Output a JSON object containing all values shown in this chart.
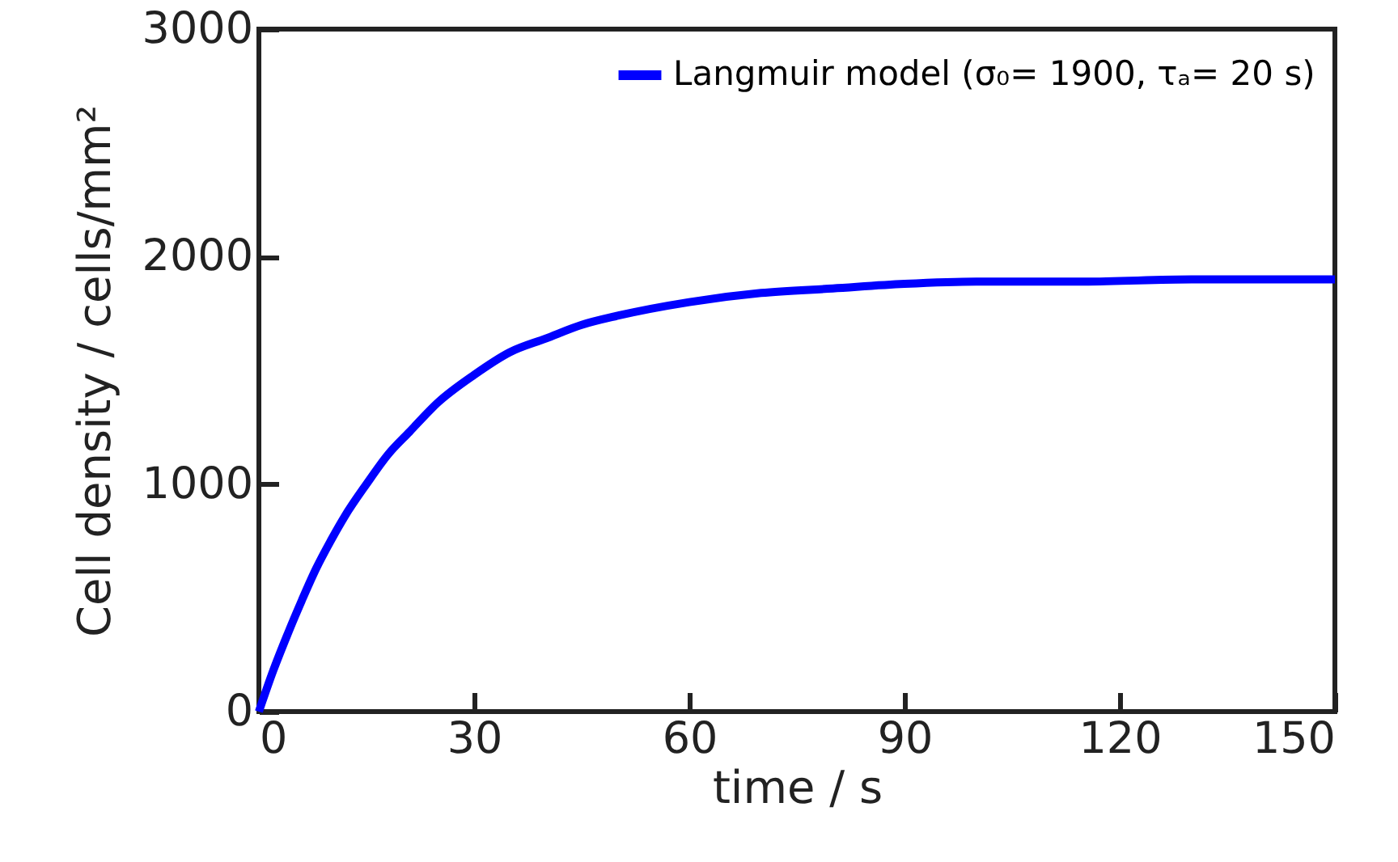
{
  "chart_data": {
    "type": "line",
    "xlabel": "time / s",
    "ylabel": "Cell density / cells/mm²",
    "x": [
      0,
      2,
      4,
      6,
      8,
      10,
      12,
      15,
      18,
      21,
      25,
      30,
      35,
      40,
      45,
      50,
      60,
      70,
      80,
      90,
      100,
      115,
      130,
      150
    ],
    "series": [
      {
        "name": "Langmuir model (σ₀= 1900, τₐ= 20 s)",
        "color": "#0000ff",
        "values": [
          0,
          180,
          340,
          490,
          630,
          750,
          860,
          1000,
          1130,
          1230,
          1360,
          1480,
          1580,
          1640,
          1700,
          1740,
          1800,
          1840,
          1860,
          1880,
          1890,
          1890,
          1900,
          1900
        ]
      }
    ],
    "xlim": [
      0,
      150
    ],
    "xticks": [
      0,
      30,
      60,
      90,
      120,
      150
    ],
    "ylim": [
      0,
      3000
    ],
    "yticks": [
      0,
      1000,
      2000,
      3000
    ],
    "legend": "top right",
    "grid": false,
    "line_style": "solid",
    "marker": "none"
  }
}
